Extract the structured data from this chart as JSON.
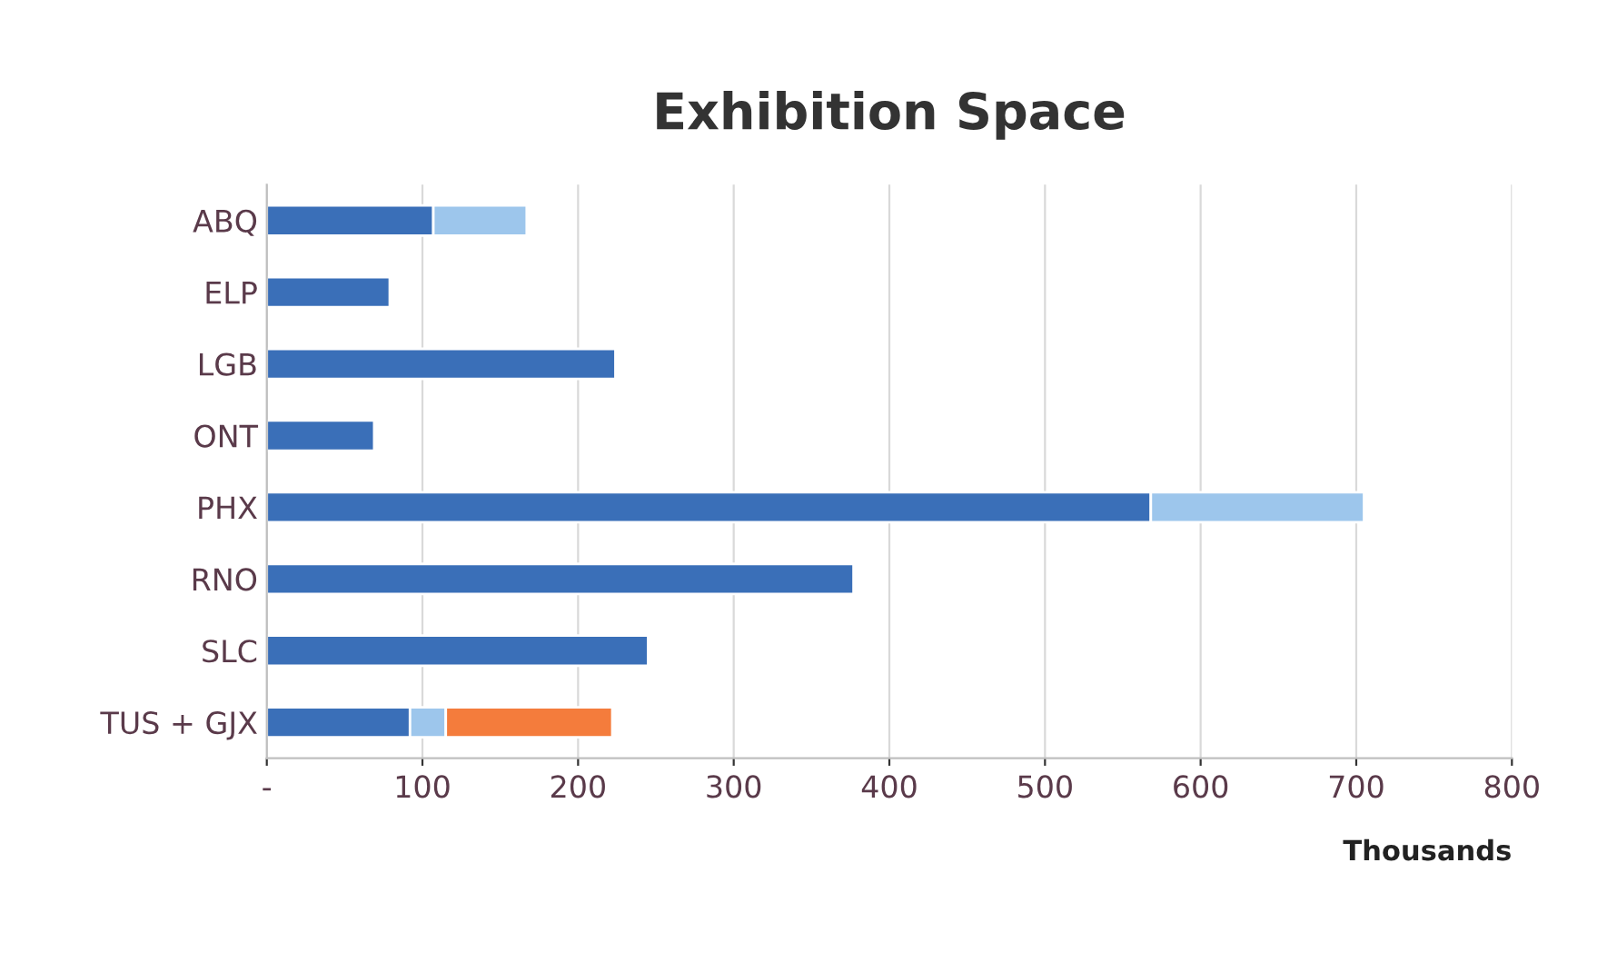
{
  "chart_data": {
    "type": "bar",
    "title": "Exhibition Space",
    "orientation": "horizontal",
    "stacked": true,
    "categories": [
      "ABQ",
      "ELP",
      "LGB",
      "ONT",
      "PHX",
      "RNO",
      "SLC",
      "TUS + GJX"
    ],
    "series": [
      {
        "color": "#3a6fb8",
        "values": [
          107,
          79,
          224,
          69,
          568,
          377,
          245,
          92
        ]
      },
      {
        "color": "#9dc6ec",
        "values": [
          60,
          null,
          null,
          null,
          137,
          null,
          null,
          23
        ]
      },
      {
        "color": "#f47c3c",
        "values": [
          null,
          null,
          null,
          null,
          null,
          null,
          null,
          107
        ]
      }
    ],
    "xlim": [
      0,
      800
    ],
    "xticks": [
      {
        "value": 0,
        "label": "-"
      },
      100,
      200,
      300,
      400,
      500,
      600,
      700,
      800
    ],
    "xlabel": "Thousands",
    "grid": "x",
    "legend": false
  }
}
